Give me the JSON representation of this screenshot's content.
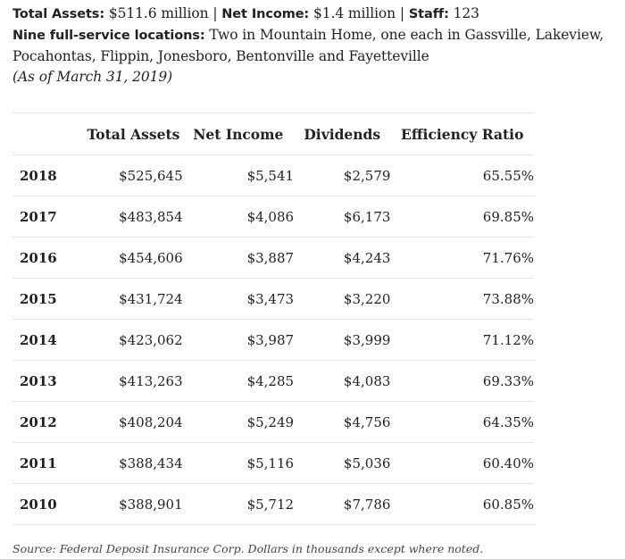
{
  "summary": {
    "total_assets_label": "Total Assets:",
    "total_assets_value": "$511.6 million",
    "sep1": "|",
    "net_income_label": "Net Income:",
    "net_income_value": "$1.4 million",
    "sep2": "|",
    "staff_label": "Staff:",
    "staff_value": "123",
    "locations_label": "Nine full-service locations:",
    "locations_value": "Two in Mountain Home, one each in Gassville, Lakeview, Pocahontas, Flippin, Jonesboro, Bentonville and Fayetteville",
    "as_of": "(As of March 31, 2019)"
  },
  "table": {
    "headers": [
      "",
      "Total Assets",
      "Net Income",
      "Dividends",
      "Efficiency Ratio"
    ],
    "rows": [
      [
        "2018",
        "$525,645",
        "$5,541",
        "$2,579",
        "65.55%"
      ],
      [
        "2017",
        "$483,854",
        "$4,086",
        "$6,173",
        "69.85%"
      ],
      [
        "2016",
        "$454,606",
        "$3,887",
        "$4,243",
        "71.76%"
      ],
      [
        "2015",
        "$431,724",
        "$3,473",
        "$3,220",
        "73.88%"
      ],
      [
        "2014",
        "$423,062",
        "$3,987",
        "$3,999",
        "71.12%"
      ],
      [
        "2013",
        "$413,263",
        "$4,285",
        "$4,083",
        "69.33%"
      ],
      [
        "2012",
        "$408,204",
        "$5,249",
        "$4,756",
        "64.35%"
      ],
      [
        "2011",
        "$388,434",
        "$5,116",
        "$5,036",
        "60.40%"
      ],
      [
        "2010",
        "$388,901",
        "$5,712",
        "$7,786",
        "60.85%"
      ]
    ]
  },
  "source": "Source: Federal Deposit Insurance Corp. Dollars in thousands except where noted."
}
